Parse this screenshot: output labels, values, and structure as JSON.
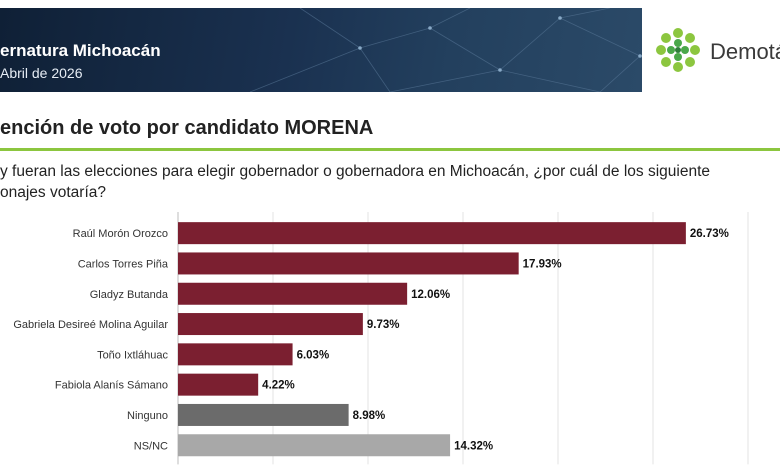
{
  "header": {
    "title": "ernatura Michoacán",
    "date": "Abril de 2026",
    "brand": "Demotá"
  },
  "section_title": "ención de voto por candidato MORENA",
  "question": {
    "line1": "y fueran las elecciones para elegir gobernador o gobernadora en Michoacán, ¿por cuál de los siguiente",
    "line2": "onajes votaría?"
  },
  "colors": {
    "candidate_bar": "#7b1f30",
    "ninguno_bar": "#6b6b6b",
    "nsnc_bar": "#a8a8a8",
    "accent": "#8cc63f",
    "banner": "#1a3150"
  },
  "chart_data": {
    "type": "bar",
    "orientation": "horizontal",
    "categories": [
      "Raúl Morón Orozco",
      "Carlos Torres Piña",
      "Gladyz Butanda",
      "Gabriela Desireé Molina Aguilar",
      "Toño Ixtláhuac",
      "Fabiola Alanís Sámano",
      "Ninguno",
      "NS/NC"
    ],
    "values": [
      26.73,
      17.93,
      12.06,
      9.73,
      6.03,
      4.22,
      8.98,
      14.32
    ],
    "value_labels": [
      "26.73%",
      "17.93%",
      "12.06%",
      "9.73%",
      "6.03%",
      "4.22%",
      "8.98%",
      "14.32%"
    ],
    "bar_colors": [
      "#7b1f30",
      "#7b1f30",
      "#7b1f30",
      "#7b1f30",
      "#7b1f30",
      "#7b1f30",
      "#6b6b6b",
      "#a8a8a8"
    ],
    "xlim": [
      0,
      30
    ],
    "grid": true
  }
}
